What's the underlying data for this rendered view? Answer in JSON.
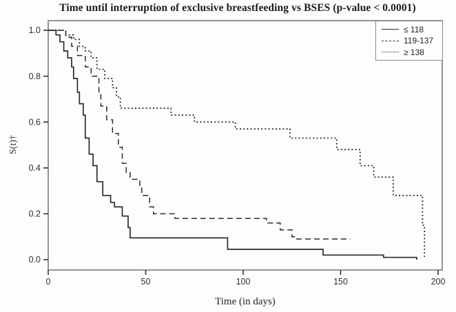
{
  "figure": {
    "kind": "kaplan-meier-survival-plot"
  },
  "colors": {
    "line": "#2a2a2a",
    "frame": "#7a7a7a",
    "tick": "#2e2e2e",
    "background": "#fdfdfd"
  },
  "chart_data": {
    "type": "line",
    "subtype": "kaplan_meier_step",
    "title": "Time until interruption of exclusive breastfeeding vs BSES (p-value < 0.0001)",
    "xlabel": "Time (in days)",
    "ylabel": "S(t)†",
    "xlim": [
      0,
      200
    ],
    "ylim": [
      0.0,
      1.0
    ],
    "x_ticks": [
      0,
      50,
      100,
      150,
      200
    ],
    "y_tick_labels": [
      "0.0",
      "0.2",
      "0.4",
      "0.6",
      "0.8",
      "1.0"
    ],
    "grid": false,
    "legend_position": "top-right",
    "series": [
      {
        "name": "≤ 118",
        "key": "le-118",
        "line_style": "solid",
        "points": [
          [
            0,
            1.0
          ],
          [
            4,
            0.98
          ],
          [
            6,
            0.95
          ],
          [
            8,
            0.91
          ],
          [
            10,
            0.88
          ],
          [
            12,
            0.84
          ],
          [
            13,
            0.79
          ],
          [
            15,
            0.73
          ],
          [
            16,
            0.68
          ],
          [
            18,
            0.63
          ],
          [
            19,
            0.53
          ],
          [
            21,
            0.46
          ],
          [
            23,
            0.41
          ],
          [
            25,
            0.34
          ],
          [
            28,
            0.28
          ],
          [
            32,
            0.25
          ],
          [
            34,
            0.23
          ],
          [
            38,
            0.19
          ],
          [
            41,
            0.14
          ],
          [
            42,
            0.095
          ],
          [
            92,
            0.045
          ],
          [
            141,
            0.02
          ],
          [
            172,
            0.01
          ],
          [
            188,
            0.01
          ],
          [
            189,
            0.0
          ]
        ]
      },
      {
        "name": "119-137",
        "key": "119-137",
        "line_style": "dashed",
        "points": [
          [
            0,
            1.0
          ],
          [
            9,
            0.97
          ],
          [
            12,
            0.93
          ],
          [
            15,
            0.89
          ],
          [
            19,
            0.84
          ],
          [
            22,
            0.8
          ],
          [
            26,
            0.73
          ],
          [
            27,
            0.67
          ],
          [
            30,
            0.61
          ],
          [
            33,
            0.55
          ],
          [
            36,
            0.49
          ],
          [
            38,
            0.42
          ],
          [
            40,
            0.38
          ],
          [
            42,
            0.35
          ],
          [
            47,
            0.32
          ],
          [
            48,
            0.28
          ],
          [
            52,
            0.23
          ],
          [
            54,
            0.2
          ],
          [
            65,
            0.18
          ],
          [
            112,
            0.16
          ],
          [
            119,
            0.13
          ],
          [
            125,
            0.1
          ],
          [
            127,
            0.09
          ],
          [
            155,
            0.09
          ]
        ]
      },
      {
        "name": "≥ 138",
        "key": "ge-138",
        "line_style": "dotted",
        "points": [
          [
            0,
            1.0
          ],
          [
            9,
            0.98
          ],
          [
            13,
            0.96
          ],
          [
            16,
            0.93
          ],
          [
            19,
            0.91
          ],
          [
            22,
            0.88
          ],
          [
            25,
            0.83
          ],
          [
            29,
            0.79
          ],
          [
            33,
            0.75
          ],
          [
            35,
            0.71
          ],
          [
            37,
            0.66
          ],
          [
            63,
            0.63
          ],
          [
            75,
            0.6
          ],
          [
            96,
            0.57
          ],
          [
            124,
            0.53
          ],
          [
            148,
            0.48
          ],
          [
            160,
            0.41
          ],
          [
            167,
            0.36
          ],
          [
            177,
            0.28
          ],
          [
            192,
            0.15
          ],
          [
            193,
            0.012
          ]
        ]
      }
    ]
  }
}
